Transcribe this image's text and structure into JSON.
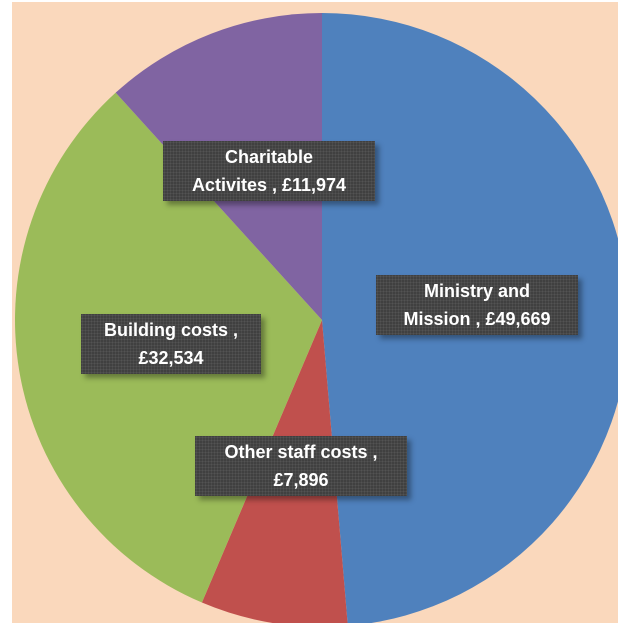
{
  "chart_data": {
    "type": "pie",
    "currency": "£",
    "slices": [
      {
        "name": "Ministry and Mission",
        "value": 49669,
        "color": "#4f81bd",
        "label_lines": [
          "Ministry and",
          "Mission , £49,669"
        ]
      },
      {
        "name": "Other staff costs",
        "value": 7896,
        "color": "#c0504d",
        "label_lines": [
          "Other staff costs ,",
          "£7,896"
        ]
      },
      {
        "name": "Building costs",
        "value": 32534,
        "color": "#9bbb59",
        "label_lines": [
          "Building costs ,",
          "£32,534"
        ]
      },
      {
        "name": "Charitable Activites",
        "value": 11974,
        "color": "#8064a2",
        "label_lines": [
          "Charitable",
          "Activites , £11,974"
        ]
      }
    ],
    "start": "12 o'clock",
    "direction": "clockwise",
    "legend": "none",
    "data_labels": "category name and value"
  },
  "style": {
    "plot_background": "#fad8bc",
    "label_background": "#404040",
    "label_text": "#ffffff"
  }
}
